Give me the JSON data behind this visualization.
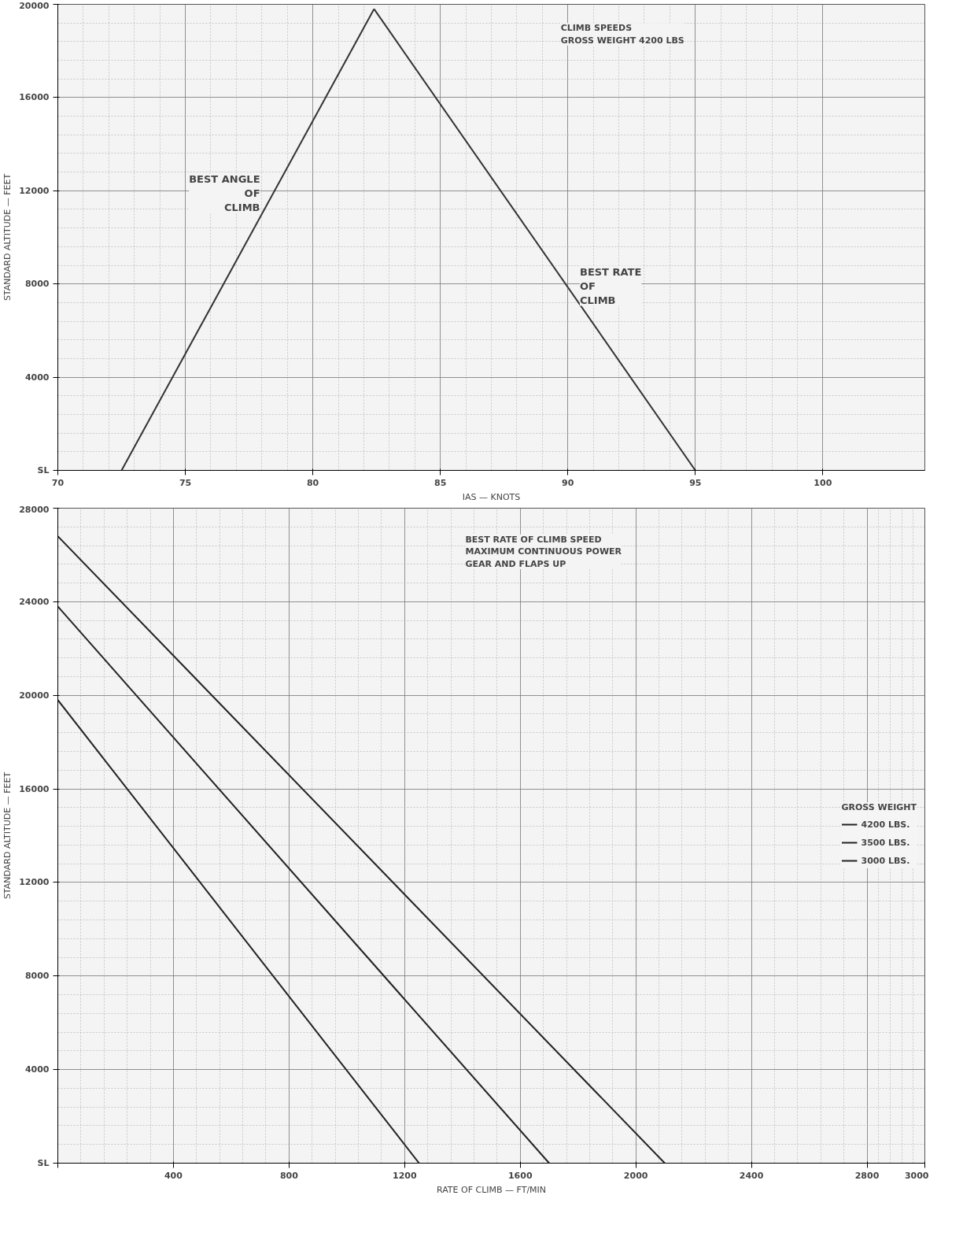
{
  "chart_data": [
    {
      "type": "line",
      "title": "CLIMB SPEEDS\nGROSS WEIGHT 4200 LBS",
      "xlabel": "IAS — KNOTS",
      "ylabel": "STANDARD ALTITUDE — FEET",
      "xlim": [
        70,
        104
      ],
      "ylim": [
        0,
        20000
      ],
      "xticks": [
        70,
        75,
        80,
        85,
        90,
        95,
        100
      ],
      "yticks": [
        {
          "value": 0,
          "label": "SL"
        },
        4000,
        8000,
        12000,
        16000,
        20000
      ],
      "grid": true,
      "legend": false,
      "series": [
        {
          "name": "BEST ANGLE\nOF\nCLIMB",
          "color": "#333333",
          "x": [
            72.5,
            82.4
          ],
          "values": [
            0,
            19800
          ]
        },
        {
          "name": "BEST RATE\nOF\nCLIMB",
          "color": "#333333",
          "x": [
            82.4,
            95
          ],
          "values": [
            19800,
            0
          ]
        }
      ]
    },
    {
      "type": "line",
      "title": "BEST RATE OF CLIMB SPEED\nMAXIMUM CONTINUOUS POWER\nGEAR AND FLAPS UP",
      "xlabel": "RATE OF CLIMB — FT/MIN",
      "ylabel": "STANDARD ALTITUDE — FEET",
      "legend_title": "GROSS WEIGHT",
      "xlim": [
        0,
        3000
      ],
      "ylim": [
        0,
        28000
      ],
      "xticks": [
        {
          "value": 0,
          "label": null
        },
        400,
        800,
        1200,
        1600,
        2000,
        2400,
        2800,
        3000
      ],
      "yticks": [
        {
          "value": 0,
          "label": "SL"
        },
        4000,
        8000,
        12000,
        16000,
        20000,
        24000,
        28000
      ],
      "grid": true,
      "legend": "right",
      "series": [
        {
          "name": "4200 LBS.",
          "color": "#222222",
          "x": [
            0,
            1250
          ],
          "values": [
            19800,
            0
          ]
        },
        {
          "name": "3500 LBS.",
          "color": "#222222",
          "x": [
            0,
            1700
          ],
          "values": [
            23800,
            0
          ]
        },
        {
          "name": "3000 LBS.",
          "color": "#222222",
          "x": [
            0,
            2100
          ],
          "values": [
            26800,
            0
          ]
        }
      ]
    }
  ]
}
